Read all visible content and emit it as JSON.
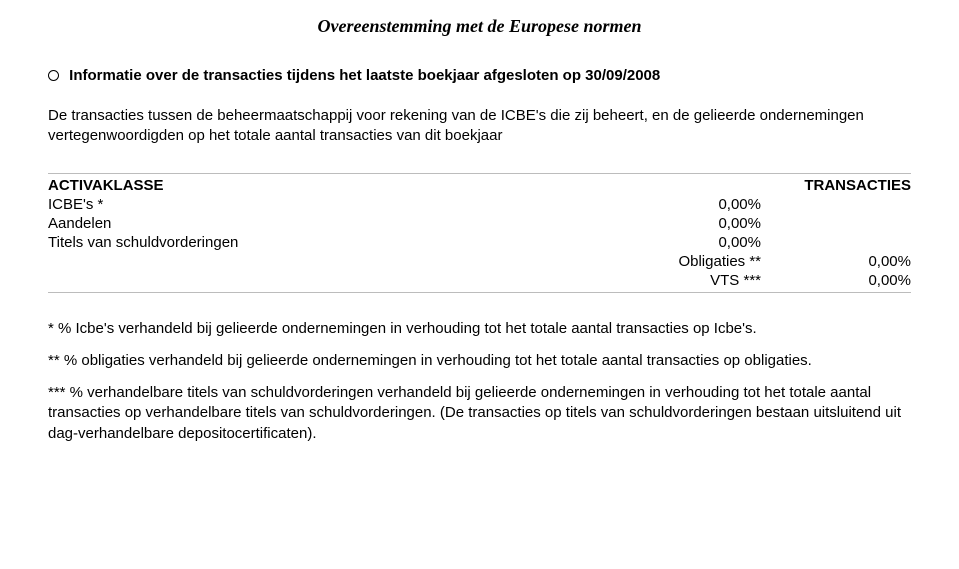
{
  "document": {
    "title": "Overeenstemming met de Europese normen"
  },
  "section": {
    "icon_name": "currency-symbol-icon",
    "heading": "Informatie over de transacties tijdens het laatste boekjaar afgesloten op 30/09/2008"
  },
  "intro": {
    "text": "De transacties tussen de beheermaatschappij voor rekening van de ICBE's die zij beheert, en de gelieerde ondernemingen vertegenwoordigden op het totale aantal transacties van dit boekjaar"
  },
  "table": {
    "head": {
      "label": "ACTIVAKLASSE",
      "right": "TRANSACTIES"
    },
    "rows": [
      {
        "label": "ICBE's *",
        "mid": "0,00%",
        "right": ""
      },
      {
        "label": "Aandelen",
        "mid": "0,00%",
        "right": ""
      },
      {
        "label": "Titels van schuldvorderingen",
        "mid": "0,00%",
        "right": ""
      },
      {
        "label": "",
        "mid": "Obligaties **",
        "right": "0,00%"
      },
      {
        "label": "",
        "mid": "VTS ***",
        "right": "0,00%"
      }
    ]
  },
  "footnotes": {
    "f1": "* % Icbe's verhandeld bij gelieerde ondernemingen in verhouding tot het totale aantal transacties op Icbe's.",
    "f2": "** % obligaties verhandeld bij gelieerde ondernemingen in verhouding tot het totale aantal transacties op obligaties.",
    "f3": "*** % verhandelbare titels van schuldvorderingen verhandeld bij gelieerde ondernemingen in verhouding tot het totale aantal transacties op verhandelbare titels van schuldvorderingen. (De transacties op titels van schuldvorderingen bestaan uitsluitend uit dag-verhandelbare depositocertificaten)."
  }
}
